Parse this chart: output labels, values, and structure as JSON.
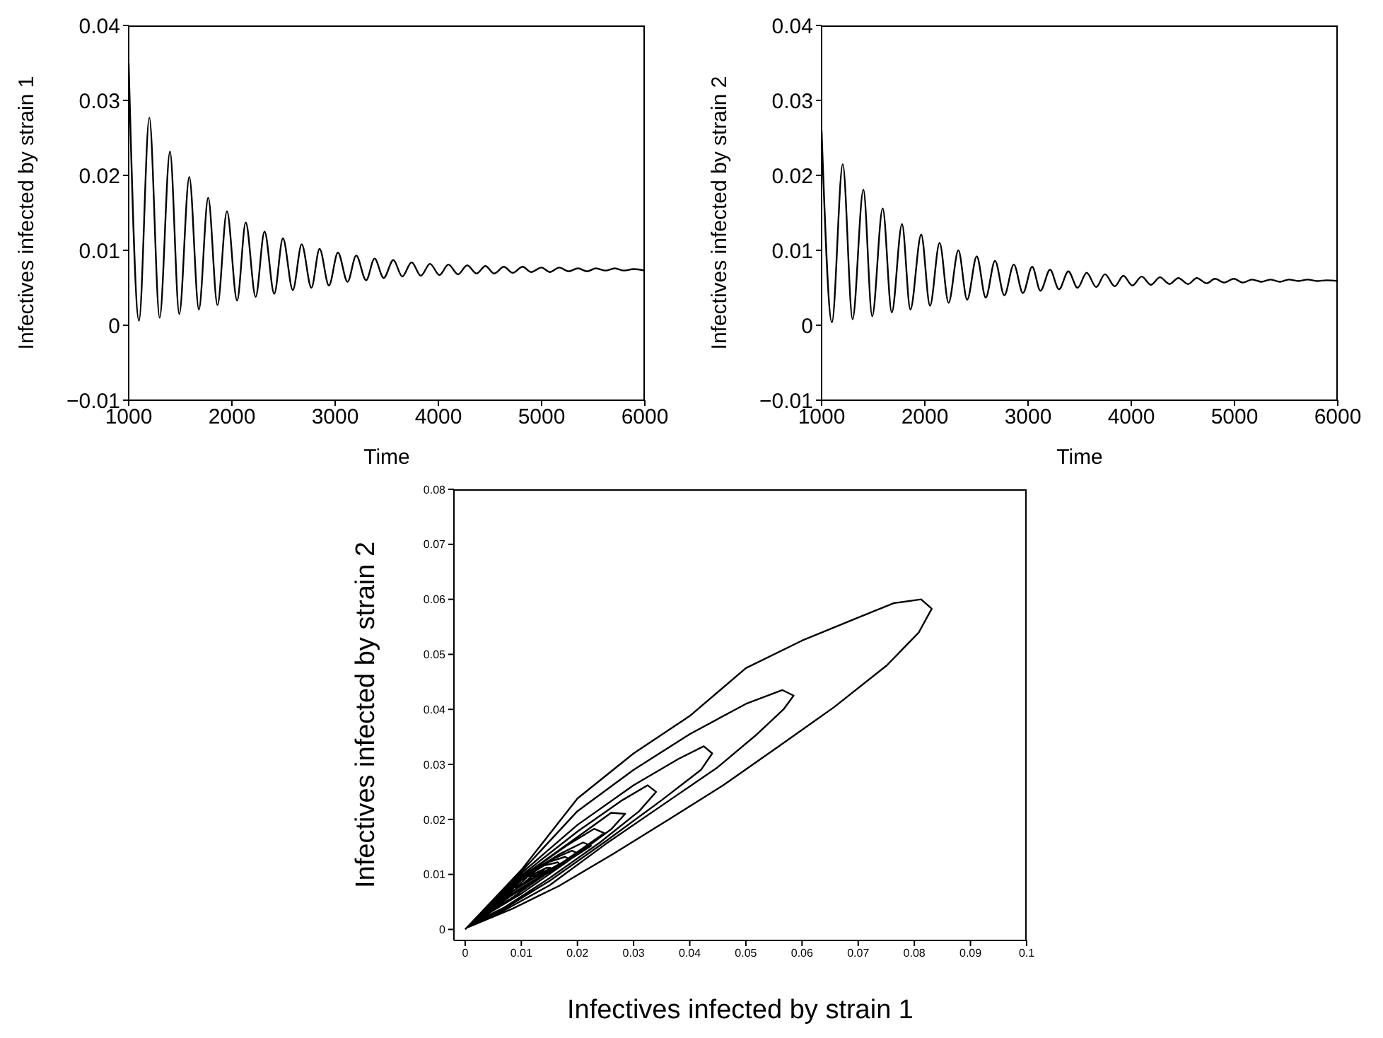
{
  "chart_data": [
    {
      "type": "line",
      "xlabel": "Time",
      "ylabel": "Infectives infected by strain 1",
      "color": "#000000",
      "xlim": [
        1000,
        6000
      ],
      "xticks": [
        1000,
        2000,
        3000,
        4000,
        5000,
        6000
      ],
      "ylim": [
        -0.01,
        0.04
      ],
      "yticks": [
        {
          "value": -0.01,
          "label": "−0.01"
        },
        0,
        0.01,
        0.02,
        0.03,
        0.04
      ],
      "x": [
        1000,
        1100,
        1200,
        1300,
        1400,
        1490,
        1587,
        1680,
        1770,
        1860,
        1952,
        2050,
        2134,
        2230,
        2316,
        2410,
        2494,
        2590,
        2676,
        2770,
        2849,
        2940,
        3027,
        3120,
        3204,
        3300,
        3382,
        3470,
        3564,
        3650,
        3741,
        3830,
        3919,
        4010,
        4097,
        4190,
        4279,
        4370,
        4456,
        4540,
        4634,
        4720,
        4816,
        4900,
        4998,
        5080,
        5171,
        5260,
        5353,
        5440,
        5526,
        5620,
        5708,
        5800,
        5891,
        6000
      ],
      "values": [
        0.035,
        0.0006,
        0.0277,
        0.001,
        0.0232,
        0.0015,
        0.0198,
        0.0021,
        0.017,
        0.0027,
        0.0152,
        0.0033,
        0.0137,
        0.0038,
        0.0125,
        0.0042,
        0.0116,
        0.0047,
        0.0108,
        0.005,
        0.0102,
        0.0053,
        0.0097,
        0.0058,
        0.0093,
        0.006,
        0.0089,
        0.0063,
        0.0087,
        0.0065,
        0.0084,
        0.0066,
        0.0082,
        0.0067,
        0.0081,
        0.0068,
        0.008,
        0.0069,
        0.0079,
        0.0069,
        0.0078,
        0.007,
        0.0078,
        0.0071,
        0.0077,
        0.0071,
        0.0077,
        0.0072,
        0.0076,
        0.0072,
        0.0076,
        0.0073,
        0.0076,
        0.0073,
        0.0075,
        0.0073
      ]
    },
    {
      "type": "line",
      "xlabel": "Time",
      "ylabel": "Infectives infected by strain 2",
      "color": "#000000",
      "xlim": [
        1000,
        6000
      ],
      "xticks": [
        1000,
        2000,
        3000,
        4000,
        5000,
        6000
      ],
      "ylim": [
        -0.01,
        0.04
      ],
      "yticks": [
        {
          "value": -0.01,
          "label": "−0.01"
        },
        0,
        0.01,
        0.02,
        0.03,
        0.04
      ],
      "x": [
        1000,
        1100,
        1205,
        1300,
        1405,
        1490,
        1592,
        1680,
        1779,
        1860,
        1965,
        2050,
        2143,
        2230,
        2325,
        2410,
        2503,
        2590,
        2680,
        2770,
        2862,
        2950,
        3040,
        3120,
        3213,
        3300,
        3390,
        3480,
        3568,
        3660,
        3745,
        3840,
        3923,
        4010,
        4101,
        4190,
        4278,
        4370,
        4456,
        4550,
        4634,
        4730,
        4811,
        4900,
        4993,
        5080,
        5171,
        5260,
        5349,
        5440,
        5526,
        5620,
        5708,
        5800,
        5891,
        6000
      ],
      "values": [
        0.026,
        0.0004,
        0.0215,
        0.0008,
        0.0181,
        0.0012,
        0.0156,
        0.0017,
        0.0135,
        0.0021,
        0.0121,
        0.0026,
        0.011,
        0.003,
        0.01,
        0.0034,
        0.0092,
        0.0037,
        0.0086,
        0.004,
        0.0081,
        0.0043,
        0.0078,
        0.0046,
        0.0074,
        0.0048,
        0.0072,
        0.005,
        0.007,
        0.0051,
        0.0068,
        0.0052,
        0.0066,
        0.0053,
        0.0065,
        0.0054,
        0.0064,
        0.0055,
        0.0063,
        0.0055,
        0.0063,
        0.0056,
        0.0062,
        0.0057,
        0.0062,
        0.0057,
        0.0061,
        0.0058,
        0.0061,
        0.0058,
        0.0061,
        0.0059,
        0.0061,
        0.0059,
        0.006,
        0.0059
      ]
    },
    {
      "type": "line",
      "xlabel": "Infectives infected by strain 1",
      "ylabel": "Infectives infected by strain 2",
      "color": "#000000",
      "xlim": [
        -0.002,
        0.1
      ],
      "xticks": [
        0,
        0.01,
        0.02,
        0.03,
        0.04,
        0.05,
        0.06,
        0.07,
        0.08,
        0.09,
        0.1
      ],
      "ylim": [
        -0.002,
        0.08
      ],
      "yticks": [
        0,
        0.01,
        0.02,
        0.03,
        0.04,
        0.05,
        0.06,
        0.07,
        0.08
      ],
      "x": [
        0,
        0.01,
        0.02,
        0.03,
        0.04,
        0.05,
        0.06,
        0.07,
        0.0763,
        0.0812,
        0.0831,
        0.0808,
        0.0751,
        0.0657,
        0.0559,
        0.0461,
        0.0363,
        0.0265,
        0.0167,
        0.0085,
        0.0005,
        0.01,
        0.02,
        0.03,
        0.04,
        0.05,
        0.0565,
        0.0585,
        0.0567,
        0.052,
        0.045,
        0.035,
        0.025,
        0.015,
        0.007,
        0.001,
        0.01,
        0.02,
        0.03,
        0.038,
        0.0425,
        0.044,
        0.042,
        0.035,
        0.025,
        0.015,
        0.007,
        0.0015,
        0.01,
        0.02,
        0.028,
        0.0325,
        0.034,
        0.031,
        0.024,
        0.015,
        0.007,
        0.002,
        0.01,
        0.02,
        0.026,
        0.0285,
        0.026,
        0.018,
        0.01,
        0.003,
        0.01,
        0.018,
        0.023,
        0.0248,
        0.022,
        0.015,
        0.008,
        0.004,
        0.01,
        0.017,
        0.021,
        0.0224,
        0.02,
        0.014,
        0.008,
        0.005,
        0.01,
        0.016,
        0.019,
        0.0202,
        0.018,
        0.013,
        0.008,
        0.006,
        0.01,
        0.015,
        0.0178,
        0.0185,
        0.0165,
        0.012,
        0.0085,
        0.007,
        0.01,
        0.014,
        0.0165,
        0.0168,
        0.015,
        0.0115,
        0.009,
        0.011,
        0.0145,
        0.0152,
        0.014,
        0.012,
        0.0105,
        0.0125,
        0.014,
        0.0135,
        0.012
      ],
      "values": [
        0,
        0.0108,
        0.0238,
        0.032,
        0.0388,
        0.0475,
        0.0525,
        0.0567,
        0.0593,
        0.06,
        0.0583,
        0.054,
        0.048,
        0.0404,
        0.0333,
        0.0263,
        0.02,
        0.0138,
        0.0079,
        0.0038,
        0.0004,
        0.0105,
        0.0215,
        0.029,
        0.0355,
        0.041,
        0.0435,
        0.0425,
        0.04,
        0.0355,
        0.0295,
        0.0225,
        0.0155,
        0.008,
        0.0035,
        0.0008,
        0.0102,
        0.019,
        0.0262,
        0.031,
        0.0333,
        0.032,
        0.029,
        0.0235,
        0.016,
        0.0088,
        0.0038,
        0.0012,
        0.0098,
        0.0178,
        0.0235,
        0.0262,
        0.025,
        0.0215,
        0.0158,
        0.0093,
        0.004,
        0.0015,
        0.0095,
        0.0168,
        0.0212,
        0.021,
        0.0182,
        0.0122,
        0.0065,
        0.0022,
        0.0094,
        0.0152,
        0.0183,
        0.0175,
        0.0155,
        0.0105,
        0.0055,
        0.003,
        0.0093,
        0.0138,
        0.0158,
        0.0152,
        0.0136,
        0.0098,
        0.006,
        0.0038,
        0.0092,
        0.013,
        0.0143,
        0.0138,
        0.0125,
        0.0094,
        0.0063,
        0.0048,
        0.0091,
        0.0123,
        0.0132,
        0.0128,
        0.0117,
        0.0092,
        0.007,
        0.0058,
        0.009,
        0.0116,
        0.0122,
        0.0118,
        0.0108,
        0.009,
        0.0075,
        0.0095,
        0.0112,
        0.0112,
        0.0104,
        0.0093,
        0.0085,
        0.0102,
        0.0108,
        0.0103,
        0.0096
      ]
    }
  ]
}
